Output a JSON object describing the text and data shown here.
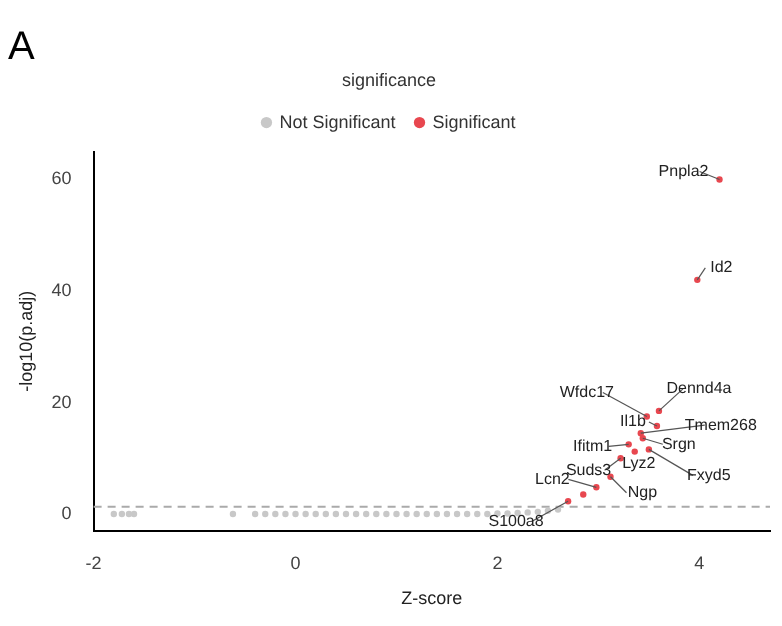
{
  "chart_data": {
    "type": "scatter",
    "title": "A",
    "xlabel": "Z-score",
    "ylabel": "-log10(p.adj)",
    "legend_title": "significance",
    "legend": "top",
    "grid": false,
    "marker": "circle",
    "xlim": [
      -2,
      4.7
    ],
    "ylim": [
      -3,
      65
    ],
    "xticks": [
      -2,
      0,
      2,
      4
    ],
    "yticks": [
      0,
      20,
      40,
      60
    ],
    "series": [
      {
        "name": "Not Significant",
        "color": "#c8c8c8",
        "x": [
          -1.8,
          -1.72,
          -1.65,
          -1.6,
          -0.62,
          -0.4,
          -0.3,
          -0.2,
          -0.1,
          0,
          0.1,
          0.2,
          0.3,
          0.4,
          0.5,
          0.6,
          0.7,
          0.8,
          0.9,
          1.0,
          1.1,
          1.2,
          1.3,
          1.4,
          1.5,
          1.6,
          1.7,
          1.8,
          1.9,
          2.0,
          2.1,
          2.2,
          2.3,
          2.4,
          2.5,
          2.6
        ],
        "values": [
          0,
          0,
          0,
          0,
          0,
          0,
          0,
          0,
          0,
          0,
          0,
          0,
          0,
          0,
          0,
          0,
          0,
          0,
          0,
          0,
          0,
          0,
          0,
          0,
          0,
          0,
          0,
          0,
          0,
          0.1,
          0.1,
          0.2,
          0.3,
          0.4,
          0.6,
          0.8
        ]
      },
      {
        "name": "Significant",
        "color": "#e8474f",
        "x": [
          4.2,
          3.98,
          3.48,
          3.6,
          3.58,
          3.42,
          3.3,
          3.44,
          3.22,
          3.36,
          3.5,
          2.98,
          3.12,
          2.7,
          2.85
        ],
        "values": [
          60,
          42,
          17.5,
          18.5,
          15.8,
          14.5,
          12.5,
          13.6,
          10,
          11.2,
          11.6,
          4.8,
          6.7,
          2.3,
          3.5
        ]
      }
    ],
    "ref_lines": [
      {
        "axis": "y",
        "value": 1.3,
        "line_style": "dashed",
        "color": "#aaaaaa"
      }
    ],
    "annotations": [
      {
        "text": "Pnpla2",
        "x": 4.2,
        "y": 60
      },
      {
        "text": "Id2",
        "x": 3.98,
        "y": 42
      },
      {
        "text": "Wfdc17",
        "x": 3.48,
        "y": 17.5
      },
      {
        "text": "Dennd4a",
        "x": 3.6,
        "y": 18.5
      },
      {
        "text": "Il1b",
        "x": 3.58,
        "y": 15.8
      },
      {
        "text": "Tmem268",
        "x": 3.42,
        "y": 14.5
      },
      {
        "text": "Ifitm1",
        "x": 3.3,
        "y": 12.5
      },
      {
        "text": "Srgn",
        "x": 3.44,
        "y": 13.6
      },
      {
        "text": "Suds3",
        "x": 3.22,
        "y": 10
      },
      {
        "text": "Lyz2",
        "x": 3.36,
        "y": 11.2
      },
      {
        "text": "Fxyd5",
        "x": 3.5,
        "y": 11.6
      },
      {
        "text": "Lcn2",
        "x": 2.98,
        "y": 4.8
      },
      {
        "text": "Ngp",
        "x": 3.12,
        "y": 6.7
      },
      {
        "text": "S100a8",
        "x": 2.7,
        "y": 2.3
      }
    ]
  }
}
